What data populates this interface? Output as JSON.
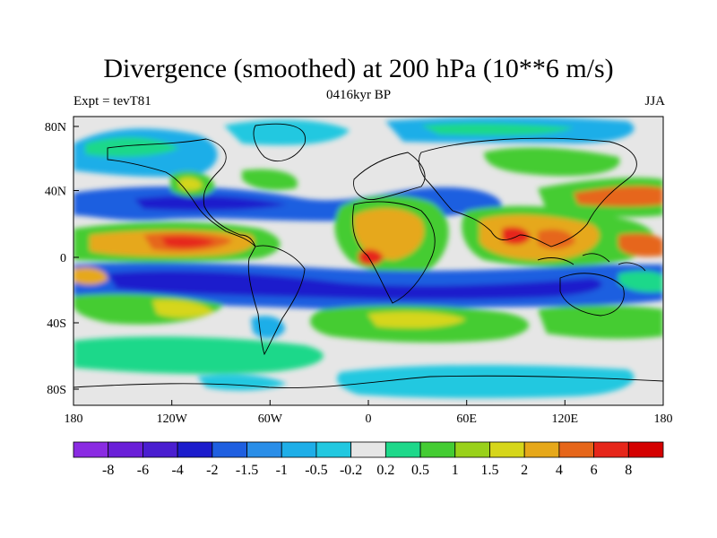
{
  "title": "Divergence (smoothed) at 200 hPa (10**6 m/s)",
  "subtitle_left": "Expt = tevT81",
  "subtitle_center": "0416kyr BP",
  "subtitle_right": "JJA",
  "map": {
    "projection": "cylindrical-equidistant",
    "lon_range": [
      -180,
      180
    ],
    "lat_range": [
      -90,
      90
    ],
    "x_ticks": [
      "180",
      "120W",
      "60W",
      "0",
      "60E",
      "120E",
      "180"
    ],
    "y_ticks": [
      "80N",
      "40N",
      "0",
      "40S",
      "80S"
    ]
  },
  "colorbar": {
    "labels": [
      "-8",
      "-6",
      "-4",
      "-2",
      "-1.5",
      "-1",
      "-0.5",
      "-0.2",
      "0.2",
      "0.5",
      "1",
      "1.5",
      "2",
      "4",
      "6",
      "8"
    ],
    "colors": [
      "#8a2be2",
      "#6a1fd8",
      "#4a1ed0",
      "#1c1ccc",
      "#1f5fe0",
      "#2a8ee8",
      "#1eaee8",
      "#22c8e0",
      "#e6e6e6",
      "#1ed88a",
      "#44cc33",
      "#99d11a",
      "#d6d61a",
      "#e6a81a",
      "#e6661a",
      "#e6261a",
      "#d40000"
    ]
  },
  "legend_title": "",
  "colors": {
    "background": "#ffffff",
    "neutral": "#e6e6e6",
    "coastline": "#000000"
  }
}
